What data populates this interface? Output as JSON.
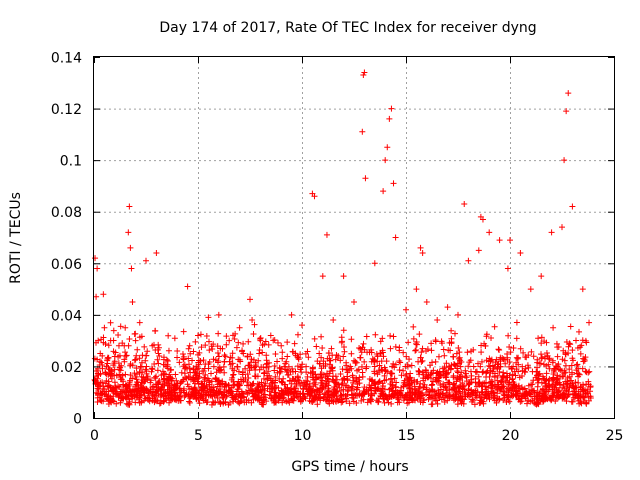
{
  "chart_data": {
    "type": "scatter",
    "title": "Day 174 of 2017, Rate Of TEC Index for receiver dyng",
    "xlabel": "GPS time / hours",
    "ylabel": "ROTI / TECUs",
    "xlim": [
      0,
      25
    ],
    "ylim": [
      0,
      0.14
    ],
    "xticks": [
      0,
      5,
      10,
      15,
      20,
      25
    ],
    "xtick_labels": [
      "0",
      "5",
      "10",
      "15",
      "20",
      "25"
    ],
    "yticks": [
      0,
      0.02,
      0.04,
      0.06,
      0.08,
      0.1,
      0.12,
      0.14
    ],
    "ytick_labels": [
      "0",
      "0.02",
      "0.04",
      "0.06",
      "0.08",
      "0.1",
      "0.12",
      "0.14"
    ],
    "grid": true,
    "marker": "+",
    "color": "#ff0000",
    "series": [
      {
        "name": "ROTI",
        "x": [
          0.05,
          0.1,
          0.15,
          0.2,
          0.3,
          0.45,
          0.5,
          0.6,
          0.8,
          1.0,
          1.2,
          1.5,
          1.65,
          1.7,
          1.75,
          1.8,
          1.85,
          2.0,
          2.2,
          2.5,
          2.8,
          3.0,
          3.1,
          3.5,
          4.0,
          4.5,
          4.6,
          5.0,
          5.5,
          6.0,
          6.5,
          7.0,
          7.5,
          7.6,
          8.0,
          8.5,
          9.0,
          9.5,
          10.0,
          10.5,
          10.6,
          11.0,
          11.2,
          11.5,
          12.0,
          12.5,
          12.9,
          12.95,
          13.0,
          13.05,
          13.5,
          13.9,
          14.0,
          14.1,
          14.2,
          14.3,
          14.4,
          14.5,
          15.0,
          15.5,
          15.7,
          15.8,
          16.0,
          16.5,
          17.0,
          17.5,
          17.8,
          18.0,
          18.5,
          18.6,
          18.7,
          19.0,
          19.5,
          19.9,
          20.0,
          20.5,
          21.0,
          21.5,
          22.0,
          22.5,
          22.6,
          22.7,
          22.8,
          23.0,
          23.5,
          23.8
        ],
        "y": [
          0.062,
          0.047,
          0.058,
          0.03,
          0.025,
          0.048,
          0.035,
          0.02,
          0.03,
          0.022,
          0.028,
          0.035,
          0.072,
          0.082,
          0.066,
          0.058,
          0.045,
          0.03,
          0.037,
          0.061,
          0.028,
          0.064,
          0.025,
          0.02,
          0.026,
          0.051,
          0.028,
          0.032,
          0.039,
          0.04,
          0.03,
          0.035,
          0.046,
          0.038,
          0.03,
          0.032,
          0.028,
          0.04,
          0.036,
          0.087,
          0.086,
          0.055,
          0.071,
          0.038,
          0.055,
          0.045,
          0.111,
          0.133,
          0.134,
          0.093,
          0.06,
          0.088,
          0.1,
          0.105,
          0.116,
          0.12,
          0.091,
          0.07,
          0.042,
          0.05,
          0.066,
          0.064,
          0.045,
          0.038,
          0.043,
          0.04,
          0.083,
          0.061,
          0.065,
          0.078,
          0.077,
          0.072,
          0.069,
          0.058,
          0.069,
          0.064,
          0.05,
          0.055,
          0.072,
          0.074,
          0.1,
          0.119,
          0.126,
          0.082,
          0.05,
          0.037
        ]
      }
    ],
    "dense_band": {
      "description_range_y": [
        0.005,
        0.03
      ],
      "x_range": [
        0,
        23.9
      ]
    }
  }
}
